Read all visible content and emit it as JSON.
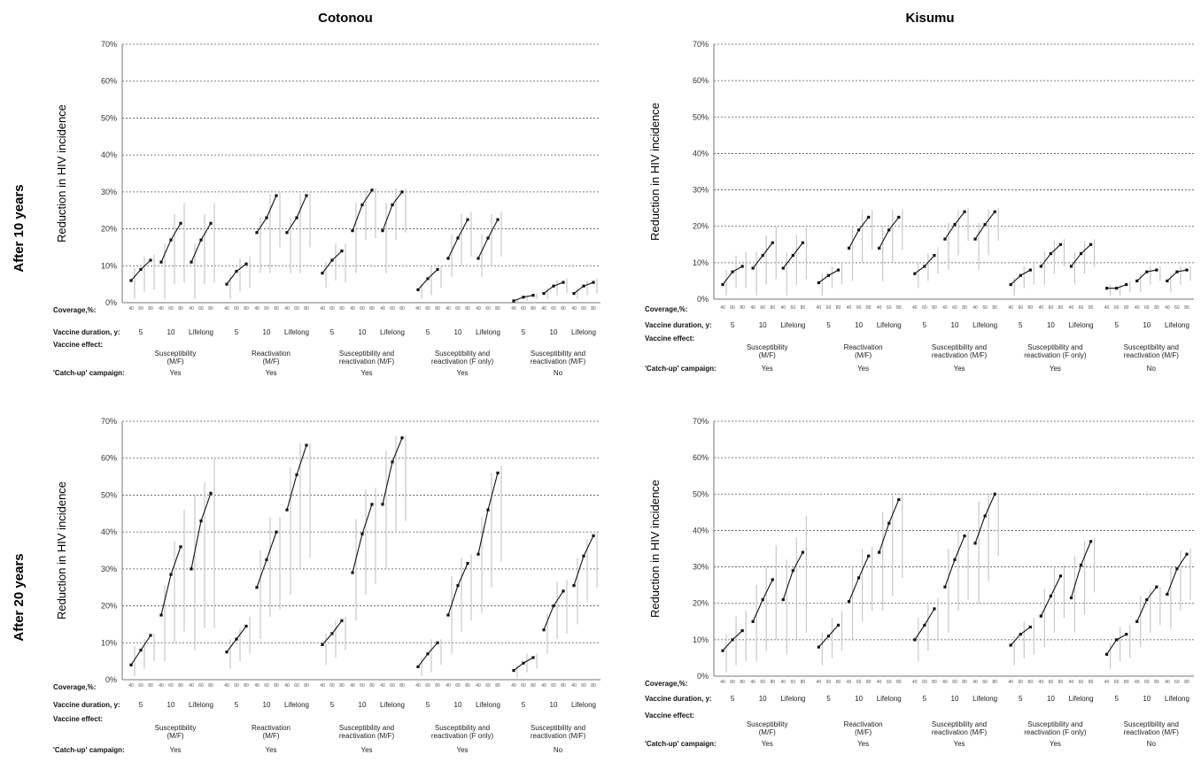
{
  "titles": {
    "col_left": "Cotonou",
    "col_right": "Kisumu"
  },
  "row_labels": {
    "top": "After 10 years",
    "bottom": "After 20 years"
  },
  "row_headers": {
    "coverage": "Coverage,%:",
    "duration": "Vaccine duration, y:",
    "effect": "Vaccine effect:",
    "campaign": "'Catch-up' campaign:"
  },
  "coverage_tick_labels": [
    "40",
    "60",
    "80"
  ],
  "durations": [
    "5",
    "10",
    "Lifelong"
  ],
  "effects": [
    [
      "Susceptibility",
      "(M/F)"
    ],
    [
      "Reactivation",
      "(M/F)"
    ],
    [
      "Susceptibility and",
      "reactivation (M/F)"
    ],
    [
      "Susceptibility and",
      "reactivation (F only)"
    ],
    [
      "Susceptibility and",
      "reactivation (M/F)"
    ]
  ],
  "campaigns": [
    "Yes",
    "Yes",
    "Yes",
    "Yes",
    "No"
  ],
  "colors": {
    "series": "#111111",
    "ci": "#c8c8c8",
    "grid": "#555555"
  },
  "chart_data": [
    {
      "type": "line",
      "title": "Cotonou",
      "row": "After 10 years",
      "ylabel": "Reduction in HIV incidence",
      "ylim": [
        0,
        70
      ],
      "yticks": [
        "0%",
        "10%",
        "20%",
        "30%",
        "40%",
        "50%",
        "60%",
        "70%"
      ],
      "grid": true,
      "groups": [
        [
          [
            6,
            9,
            11.5
          ],
          [
            11,
            17,
            21.5
          ],
          [
            11,
            17,
            21.5
          ]
        ],
        [
          [
            5,
            8.5,
            10.5
          ],
          [
            19,
            23,
            29
          ],
          [
            19,
            23,
            29
          ]
        ],
        [
          [
            8,
            11.5,
            14
          ],
          [
            19.5,
            26.5,
            30.5
          ],
          [
            19.5,
            26.5,
            30
          ]
        ],
        [
          [
            3.5,
            6.5,
            9
          ],
          [
            12,
            17.5,
            22.5
          ],
          [
            12,
            17.5,
            22.5
          ]
        ],
        [
          [
            0.5,
            1.5,
            2
          ],
          [
            2.5,
            4.5,
            5.5
          ],
          [
            2.5,
            4.5,
            5.5
          ]
        ]
      ],
      "ci_low": [
        [
          [
            1,
            3,
            3.5
          ],
          [
            1,
            5,
            5.5
          ],
          [
            1,
            5,
            5.5
          ]
        ],
        [
          [
            1,
            3,
            4
          ],
          [
            8,
            8,
            15
          ],
          [
            8,
            8,
            15
          ]
        ],
        [
          [
            4,
            6,
            5.5
          ],
          [
            8,
            17,
            17.5
          ],
          [
            8,
            17,
            19
          ]
        ],
        [
          [
            1,
            2,
            4
          ],
          [
            7,
            10,
            12.5
          ],
          [
            7,
            10,
            12.5
          ]
        ],
        [
          [
            0,
            0.5,
            1
          ],
          [
            1,
            2,
            2.5
          ],
          [
            1,
            2,
            2.5
          ]
        ]
      ],
      "ci_high": [
        [
          [
            9.5,
            12.5,
            13
          ],
          [
            16,
            24,
            27
          ],
          [
            16,
            24,
            27
          ]
        ],
        [
          [
            7.5,
            12,
            12.5
          ],
          [
            23,
            29.5,
            30
          ],
          [
            23,
            29.5,
            30
          ]
        ],
        [
          [
            11,
            16,
            16
          ],
          [
            27,
            30.5,
            31
          ],
          [
            27,
            31,
            31
          ]
        ],
        [
          [
            5,
            10,
            10
          ],
          [
            18.5,
            24,
            24.5
          ],
          [
            18.5,
            24,
            24.5
          ]
        ],
        [
          [
            1,
            2,
            2.5
          ],
          [
            4,
            6,
            6.5
          ],
          [
            4,
            6,
            6.5
          ]
        ]
      ]
    },
    {
      "type": "line",
      "title": "Kisumu",
      "row": "After 10 years",
      "ylabel": "Reduction in HIV incidence",
      "ylim": [
        0,
        70
      ],
      "yticks": [
        "0%",
        "10%",
        "20%",
        "30%",
        "40%",
        "50%",
        "60%",
        "70%"
      ],
      "grid": true,
      "groups": [
        [
          [
            4,
            7.5,
            9
          ],
          [
            8.5,
            12,
            15.5
          ],
          [
            8.5,
            12,
            15.5
          ]
        ],
        [
          [
            4.5,
            6.5,
            8
          ],
          [
            14,
            19,
            22.5
          ],
          [
            14,
            19,
            22.5
          ]
        ],
        [
          [
            7,
            9,
            12
          ],
          [
            16.5,
            20.5,
            24
          ],
          [
            16.5,
            20.5,
            24
          ]
        ],
        [
          [
            4,
            6.5,
            8
          ],
          [
            9,
            12.5,
            15
          ],
          [
            9,
            12.5,
            15
          ]
        ],
        [
          [
            3,
            3,
            4
          ],
          [
            5,
            7.5,
            8
          ],
          [
            5,
            7.5,
            8
          ]
        ]
      ],
      "ci_low": [
        [
          [
            1,
            3,
            3
          ],
          [
            1,
            4,
            5.5
          ],
          [
            1,
            4,
            5.5
          ]
        ],
        [
          [
            1,
            3,
            4
          ],
          [
            5,
            10,
            13.5
          ],
          [
            5,
            10,
            13.5
          ]
        ],
        [
          [
            3,
            5,
            7
          ],
          [
            8,
            12,
            16
          ],
          [
            8,
            12,
            16
          ]
        ],
        [
          [
            1,
            3,
            4
          ],
          [
            4,
            7,
            9
          ],
          [
            4,
            7,
            9
          ]
        ],
        [
          [
            1,
            1,
            2
          ],
          [
            2,
            4,
            5
          ],
          [
            2,
            4,
            5
          ]
        ]
      ],
      "ci_high": [
        [
          [
            8,
            12,
            13
          ],
          [
            13,
            17.5,
            20
          ],
          [
            13,
            17.5,
            20
          ]
        ],
        [
          [
            7,
            9,
            10
          ],
          [
            20,
            24.5,
            24.5
          ],
          [
            20,
            24.5,
            24.5
          ]
        ],
        [
          [
            10,
            12.5,
            14
          ],
          [
            21,
            24.5,
            25
          ],
          [
            21,
            24.5,
            25
          ]
        ],
        [
          [
            6,
            9,
            10.5
          ],
          [
            13,
            16,
            16.5
          ],
          [
            13,
            16,
            16.5
          ]
        ],
        [
          [
            4,
            4,
            5
          ],
          [
            7,
            9,
            9
          ],
          [
            7,
            9,
            9
          ]
        ]
      ]
    },
    {
      "type": "line",
      "title": "Cotonou",
      "row": "After 20 years",
      "ylabel": "Reduction in HIV incidence",
      "ylim": [
        0,
        70
      ],
      "yticks": [
        "0%",
        "10%",
        "20%",
        "30%",
        "40%",
        "50%",
        "60%",
        "70%"
      ],
      "grid": true,
      "groups": [
        [
          [
            4,
            8,
            12
          ],
          [
            17.5,
            28.5,
            36
          ],
          [
            30,
            43,
            50.5
          ]
        ],
        [
          [
            7.5,
            11,
            14.5
          ],
          [
            25,
            32.5,
            40
          ],
          [
            46,
            55.5,
            63.5
          ]
        ],
        [
          [
            9.5,
            12.5,
            16
          ],
          [
            29,
            39.5,
            47.5
          ],
          [
            47.5,
            59,
            65.5
          ]
        ],
        [
          [
            3.5,
            7,
            10
          ],
          [
            17.5,
            25.5,
            31.5
          ],
          [
            34,
            46,
            56
          ]
        ],
        [
          [
            2.5,
            4.5,
            6
          ],
          [
            13.5,
            20,
            24
          ],
          [
            25.5,
            33.5,
            39
          ]
        ]
      ],
      "ci_low": [
        [
          [
            1,
            3,
            5
          ],
          [
            5,
            10,
            13
          ],
          [
            8,
            14,
            14
          ]
        ],
        [
          [
            3,
            5,
            7
          ],
          [
            11,
            17,
            19
          ],
          [
            23,
            30,
            33
          ]
        ],
        [
          [
            4,
            6,
            8
          ],
          [
            16,
            23,
            26
          ],
          [
            30,
            40,
            43
          ]
        ],
        [
          [
            1,
            2,
            4
          ],
          [
            7,
            13,
            16
          ],
          [
            18,
            25,
            32
          ]
        ],
        [
          [
            0.5,
            2,
            3
          ],
          [
            7,
            11,
            12.5
          ],
          [
            15,
            21,
            25
          ]
        ]
      ],
      "ci_high": [
        [
          [
            9,
            11,
            12.5
          ],
          [
            25.5,
            37.5,
            46
          ],
          [
            50,
            53.5,
            60
          ]
        ],
        [
          [
            11,
            14,
            17
          ],
          [
            35,
            44,
            44
          ],
          [
            57.5,
            64,
            64
          ]
        ],
        [
          [
            12.5,
            16,
            17
          ],
          [
            43.5,
            51.5,
            52
          ],
          [
            62,
            66,
            66
          ]
        ],
        [
          [
            6,
            11,
            11
          ],
          [
            28,
            33,
            34
          ],
          [
            44,
            56,
            58
          ]
        ],
        [
          [
            4,
            7,
            7
          ],
          [
            18,
            26.5,
            27
          ],
          [
            33,
            38,
            40
          ]
        ]
      ]
    },
    {
      "type": "line",
      "title": "Kisumu",
      "row": "After 20 years",
      "ylabel": "Reduction in HIV incidence",
      "ylim": [
        0,
        70
      ],
      "yticks": [
        "0%",
        "10%",
        "20%",
        "30%",
        "40%",
        "50%",
        "60%",
        "70%"
      ],
      "grid": true,
      "groups": [
        [
          [
            7,
            10,
            12.5
          ],
          [
            15,
            21,
            26.5
          ],
          [
            21,
            29,
            34
          ]
        ],
        [
          [
            8,
            11,
            14
          ],
          [
            20.5,
            27,
            33
          ],
          [
            34,
            42,
            48.5
          ]
        ],
        [
          [
            10,
            14,
            18.5
          ],
          [
            24.5,
            32,
            38.5
          ],
          [
            36.5,
            44,
            50
          ]
        ],
        [
          [
            8.5,
            11.5,
            13.5
          ],
          [
            16.5,
            22,
            27.5
          ],
          [
            21.5,
            30.5,
            37
          ]
        ],
        [
          [
            6,
            10,
            11.5
          ],
          [
            15,
            21,
            24.5
          ],
          [
            22.5,
            29.5,
            33.5
          ]
        ]
      ],
      "ci_low": [
        [
          [
            1,
            3,
            4
          ],
          [
            4,
            7,
            10
          ],
          [
            6,
            10,
            12
          ]
        ],
        [
          [
            3,
            5,
            7
          ],
          [
            10,
            15,
            18
          ],
          [
            18,
            22,
            27
          ]
        ],
        [
          [
            4,
            7,
            10
          ],
          [
            12,
            18,
            21
          ],
          [
            20,
            26,
            33
          ]
        ],
        [
          [
            3,
            5,
            6
          ],
          [
            8,
            12,
            16
          ],
          [
            12,
            17,
            23
          ]
        ],
        [
          [
            2,
            4,
            5
          ],
          [
            8,
            12,
            14
          ],
          [
            13,
            18,
            21
          ]
        ]
      ],
      "ci_high": [
        [
          [
            11.5,
            16.5,
            18
          ],
          [
            25,
            30,
            36
          ],
          [
            32,
            38,
            44
          ]
        ],
        [
          [
            12,
            16,
            18
          ],
          [
            30,
            35,
            35.5
          ],
          [
            45,
            50,
            50
          ]
        ],
        [
          [
            16,
            20,
            21.5
          ],
          [
            35,
            40,
            40
          ],
          [
            48,
            50,
            50
          ]
        ],
        [
          [
            11,
            15,
            16
          ],
          [
            24,
            30,
            30.5
          ],
          [
            33,
            37,
            38
          ]
        ],
        [
          [
            9,
            13.5,
            14
          ],
          [
            22,
            24,
            24.5
          ],
          [
            30,
            34.5,
            35
          ]
        ]
      ]
    }
  ]
}
